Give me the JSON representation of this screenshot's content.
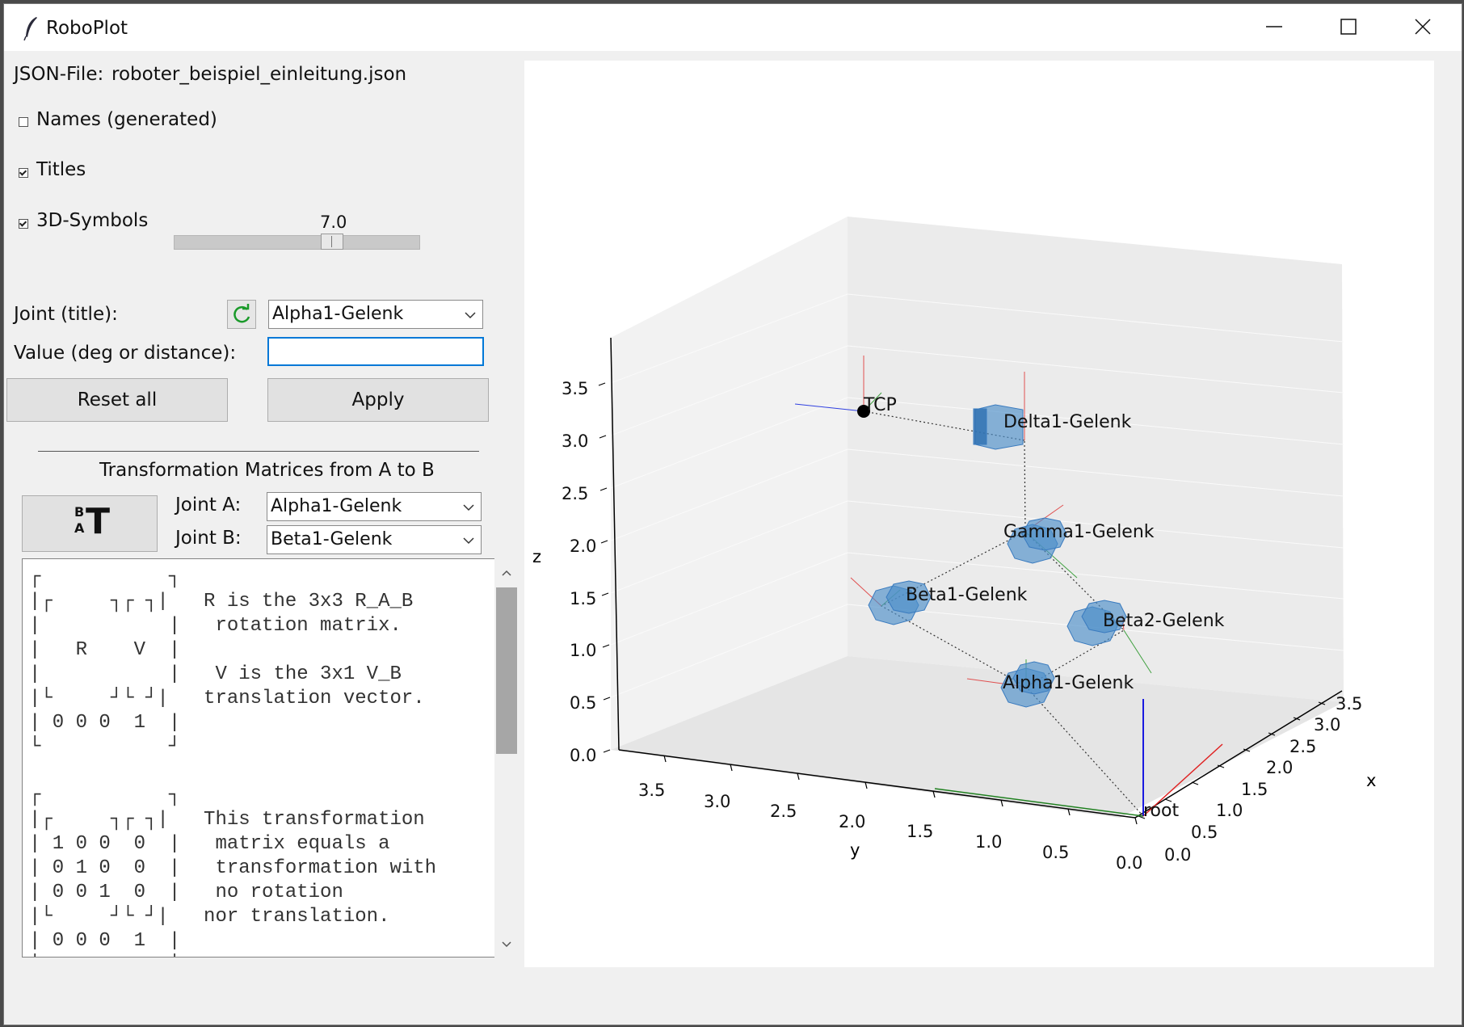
{
  "window": {
    "title": "RoboPlot"
  },
  "panel": {
    "json_label": "JSON-File:",
    "json_file": "roboter_beispiel_einleitung.json",
    "names_label": "Names (generated)",
    "names_checked": false,
    "titles_label": "Titles",
    "titles_checked": true,
    "symbols_label": "3D-Symbols",
    "symbols_checked": true,
    "slider_value": "7.0",
    "joint_label": "Joint (title):",
    "joint_selected": "Alpha1-Gelenk",
    "value_label": "Value (deg or distance):",
    "value_input": "",
    "reset_label": "Reset all",
    "apply_label": "Apply",
    "transform_header": "Transformation Matrices from A to B",
    "transform_button": {
      "big": "T",
      "sup": "B",
      "sub": "A"
    },
    "joint_a_label": "Joint A:",
    "joint_a_selected": "Alpha1-Gelenk",
    "joint_b_label": "Joint B:",
    "joint_b_selected": "Beta1-Gelenk",
    "matrix_text": "┌           ┐\n|┌     ┐┌ ┐|   R is the 3x3 R_A_B\n|           |   rotation matrix.\n|   R    V  |\n|           |   V is the 3x1 V_B\n|└     ┘└ ┘|   translation vector.\n| 0 0 0  1  |\n└           ┘\n\n┌           ┐\n|┌     ┐┌ ┐|   This transformation\n| 1 0 0  0  |   matrix equals a\n| 0 1 0  0  |   transformation with\n| 0 0 1  0  |   no rotation\n|└     ┘└ ┘|   nor translation.\n| 0 0 0  1  |\n└           ┘"
  },
  "plot": {
    "z_label": "z",
    "y_label": "y",
    "x_label": "x",
    "z_ticks": [
      "0.0",
      "0.5",
      "1.0",
      "1.5",
      "2.0",
      "2.5",
      "3.0",
      "3.5"
    ],
    "y_ticks": [
      "3.5",
      "3.0",
      "2.5",
      "2.0",
      "1.5",
      "1.0",
      "0.5",
      "0.0"
    ],
    "x_ticks": [
      "0.0",
      "0.5",
      "1.0",
      "1.5",
      "2.0",
      "2.5",
      "3.0",
      "3.5"
    ],
    "labels": {
      "tcp": "TCP",
      "delta1": "Delta1-Gelenk",
      "gamma1": "Gamma1-Gelenk",
      "beta1": "Beta1-Gelenk",
      "beta2": "Beta2-Gelenk",
      "alpha1": "Alpha1-Gelenk",
      "root": "root"
    },
    "colors": {
      "joint": "#4d8fca",
      "x_axis": "#e02020",
      "y_axis": "#208020",
      "z_axis": "#1a1ae0"
    }
  }
}
